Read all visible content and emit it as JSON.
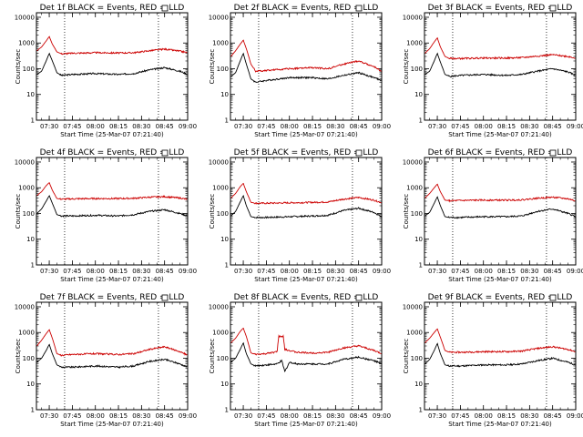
{
  "figure": {
    "ytick_labels": [
      "1",
      "10",
      "100",
      "1000",
      "10000"
    ],
    "xtick_labels": [
      "07:30",
      "07:45",
      "08:00",
      "08:15",
      "08:30",
      "08:45",
      "09:00"
    ],
    "xlabel": "Start Time (25-Mar-07 07:21:40)",
    "ylabel": "Counts/sec",
    "colors": {
      "events": "#000000",
      "lld": "#cc0000"
    }
  },
  "chart_data": [
    {
      "type": "line",
      "panel": 1,
      "title": "Det 1f BLACK = Events, RED = LLD",
      "yscale": "log",
      "ylim": [
        1,
        15000
      ],
      "xlim": [
        "07:21:40",
        "09:00"
      ],
      "xticks": [
        "07:30",
        "07:45",
        "08:00",
        "08:15",
        "08:30",
        "08:45",
        "09:00"
      ],
      "vlines": [
        "07:40",
        "08:41"
      ],
      "series": [
        {
          "name": "BLACK = Events",
          "color": "#000000",
          "x": [
            "07:22",
            "07:25",
            "07:28",
            "07:30",
            "07:32",
            "07:35",
            "07:38",
            "07:45",
            "08:00",
            "08:15",
            "08:25",
            "08:35",
            "08:45",
            "08:55",
            "09:00"
          ],
          "y": [
            60,
            80,
            200,
            400,
            200,
            70,
            55,
            60,
            65,
            60,
            65,
            90,
            110,
            80,
            60
          ]
        },
        {
          "name": "RED = LLD",
          "color": "#cc0000",
          "x": [
            "07:22",
            "07:25",
            "07:28",
            "07:30",
            "07:32",
            "07:35",
            "07:38",
            "07:45",
            "08:00",
            "08:15",
            "08:25",
            "08:35",
            "08:45",
            "08:55",
            "09:00"
          ],
          "y": [
            500,
            700,
            1200,
            1800,
            900,
            450,
            380,
            400,
            420,
            410,
            420,
            500,
            580,
            480,
            420
          ]
        }
      ]
    },
    {
      "type": "line",
      "panel": 2,
      "title": "Det 2f BLACK = Events, RED = LLD",
      "yscale": "log",
      "ylim": [
        1,
        15000
      ],
      "xlim": [
        "07:21:40",
        "09:00"
      ],
      "xticks": [
        "07:30",
        "07:45",
        "08:00",
        "08:15",
        "08:30",
        "08:45",
        "09:00"
      ],
      "vlines": [
        "07:40",
        "08:41"
      ],
      "series": [
        {
          "name": "BLACK = Events",
          "color": "#000000",
          "x": [
            "07:22",
            "07:25",
            "07:28",
            "07:30",
            "07:32",
            "07:35",
            "07:38",
            "07:45",
            "08:00",
            "08:15",
            "08:25",
            "08:35",
            "08:45",
            "08:55",
            "09:00"
          ],
          "y": [
            50,
            70,
            200,
            400,
            150,
            40,
            30,
            35,
            45,
            45,
            40,
            55,
            70,
            45,
            35
          ]
        },
        {
          "name": "RED = LLD",
          "color": "#cc0000",
          "x": [
            "07:22",
            "07:25",
            "07:28",
            "07:30",
            "07:32",
            "07:35",
            "07:38",
            "07:45",
            "08:00",
            "08:15",
            "08:25",
            "08:35",
            "08:45",
            "08:55",
            "09:00"
          ],
          "y": [
            300,
            500,
            900,
            1300,
            600,
            150,
            80,
            85,
            100,
            110,
            100,
            150,
            200,
            120,
            80
          ]
        }
      ]
    },
    {
      "type": "line",
      "panel": 3,
      "title": "Det 3f BLACK = Events, RED = LLD",
      "yscale": "log",
      "ylim": [
        1,
        15000
      ],
      "xlim": [
        "07:21:40",
        "09:00"
      ],
      "xticks": [
        "07:30",
        "07:45",
        "08:00",
        "08:15",
        "08:30",
        "08:45",
        "09:00"
      ],
      "vlines": [
        "07:40",
        "08:41"
      ],
      "series": [
        {
          "name": "BLACK = Events",
          "color": "#000000",
          "x": [
            "07:22",
            "07:25",
            "07:28",
            "07:30",
            "07:32",
            "07:35",
            "07:38",
            "07:45",
            "08:00",
            "08:15",
            "08:25",
            "08:35",
            "08:45",
            "08:55",
            "09:00"
          ],
          "y": [
            60,
            80,
            200,
            400,
            180,
            60,
            50,
            55,
            60,
            55,
            60,
            80,
            100,
            75,
            55
          ]
        },
        {
          "name": "RED = LLD",
          "color": "#cc0000",
          "x": [
            "07:22",
            "07:25",
            "07:28",
            "07:30",
            "07:32",
            "07:35",
            "07:38",
            "07:45",
            "08:00",
            "08:15",
            "08:25",
            "08:35",
            "08:45",
            "08:55",
            "09:00"
          ],
          "y": [
            400,
            600,
            1100,
            1600,
            700,
            300,
            250,
            250,
            260,
            260,
            270,
            310,
            350,
            300,
            260
          ]
        }
      ]
    },
    {
      "type": "line",
      "panel": 4,
      "title": "Det 4f BLACK = Events, RED = LLD",
      "yscale": "log",
      "ylim": [
        1,
        15000
      ],
      "xlim": [
        "07:21:40",
        "09:00"
      ],
      "xticks": [
        "07:30",
        "07:45",
        "08:00",
        "08:15",
        "08:30",
        "08:45",
        "09:00"
      ],
      "vlines": [
        "07:40",
        "08:41"
      ],
      "series": [
        {
          "name": "BLACK = Events",
          "color": "#000000",
          "x": [
            "07:22",
            "07:25",
            "07:28",
            "07:30",
            "07:32",
            "07:35",
            "07:38",
            "07:45",
            "08:00",
            "08:15",
            "08:25",
            "08:35",
            "08:45",
            "08:55",
            "09:00"
          ],
          "y": [
            100,
            150,
            300,
            500,
            250,
            90,
            80,
            80,
            85,
            80,
            90,
            120,
            140,
            100,
            80
          ]
        },
        {
          "name": "RED = LLD",
          "color": "#cc0000",
          "x": [
            "07:22",
            "07:25",
            "07:28",
            "07:30",
            "07:32",
            "07:35",
            "07:38",
            "07:45",
            "08:00",
            "08:15",
            "08:25",
            "08:35",
            "08:45",
            "08:55",
            "09:00"
          ],
          "y": [
            500,
            700,
            1200,
            1600,
            800,
            380,
            360,
            370,
            380,
            380,
            390,
            430,
            450,
            400,
            350
          ]
        }
      ]
    },
    {
      "type": "line",
      "panel": 5,
      "title": "Det 5f BLACK = Events, RED = LLD",
      "yscale": "log",
      "ylim": [
        1,
        15000
      ],
      "xlim": [
        "07:21:40",
        "09:00"
      ],
      "xticks": [
        "07:30",
        "07:45",
        "08:00",
        "08:15",
        "08:30",
        "08:45",
        "09:00"
      ],
      "vlines": [
        "07:40",
        "08:41"
      ],
      "series": [
        {
          "name": "BLACK = Events",
          "color": "#000000",
          "x": [
            "07:22",
            "07:25",
            "07:28",
            "07:30",
            "07:32",
            "07:35",
            "07:38",
            "07:45",
            "08:00",
            "08:15",
            "08:25",
            "08:35",
            "08:45",
            "08:55",
            "09:00"
          ],
          "y": [
            80,
            120,
            280,
            500,
            200,
            75,
            70,
            70,
            75,
            80,
            85,
            130,
            160,
            110,
            75
          ]
        },
        {
          "name": "RED = LLD",
          "color": "#cc0000",
          "x": [
            "07:22",
            "07:25",
            "07:28",
            "07:30",
            "07:32",
            "07:35",
            "07:38",
            "07:45",
            "08:00",
            "08:15",
            "08:25",
            "08:35",
            "08:45",
            "08:55",
            "09:00"
          ],
          "y": [
            400,
            600,
            1100,
            1500,
            700,
            270,
            250,
            250,
            260,
            270,
            280,
            360,
            420,
            330,
            260
          ]
        }
      ]
    },
    {
      "type": "line",
      "panel": 6,
      "title": "Det 6f BLACK = Events, RED = LLD",
      "yscale": "log",
      "ylim": [
        1,
        15000
      ],
      "xlim": [
        "07:21:40",
        "09:00"
      ],
      "xticks": [
        "07:30",
        "07:45",
        "08:00",
        "08:15",
        "08:30",
        "08:45",
        "09:00"
      ],
      "vlines": [
        "07:40",
        "08:41"
      ],
      "series": [
        {
          "name": "BLACK = Events",
          "color": "#000000",
          "x": [
            "07:22",
            "07:25",
            "07:28",
            "07:30",
            "07:32",
            "07:35",
            "07:38",
            "07:45",
            "08:00",
            "08:15",
            "08:25",
            "08:35",
            "08:45",
            "08:55",
            "09:00"
          ],
          "y": [
            80,
            110,
            250,
            450,
            200,
            75,
            70,
            70,
            75,
            75,
            80,
            120,
            150,
            100,
            75
          ]
        },
        {
          "name": "RED = LLD",
          "color": "#cc0000",
          "x": [
            "07:22",
            "07:25",
            "07:28",
            "07:30",
            "07:32",
            "07:35",
            "07:38",
            "07:45",
            "08:00",
            "08:15",
            "08:25",
            "08:35",
            "08:45",
            "08:55",
            "09:00"
          ],
          "y": [
            400,
            600,
            1000,
            1400,
            700,
            330,
            310,
            320,
            330,
            330,
            340,
            390,
            430,
            370,
            310
          ]
        }
      ]
    },
    {
      "type": "line",
      "panel": 7,
      "title": "Det 7f BLACK = Events, RED = LLD",
      "yscale": "log",
      "ylim": [
        1,
        15000
      ],
      "xlim": [
        "07:21:40",
        "09:00"
      ],
      "xticks": [
        "07:30",
        "07:45",
        "08:00",
        "08:15",
        "08:30",
        "08:45",
        "09:00"
      ],
      "vlines": [
        "07:40",
        "08:41"
      ],
      "series": [
        {
          "name": "BLACK = Events",
          "color": "#000000",
          "x": [
            "07:22",
            "07:25",
            "07:28",
            "07:30",
            "07:32",
            "07:35",
            "07:38",
            "07:45",
            "08:00",
            "08:15",
            "08:25",
            "08:35",
            "08:45",
            "08:55",
            "09:00"
          ],
          "y": [
            70,
            100,
            200,
            350,
            150,
            55,
            45,
            45,
            50,
            45,
            50,
            75,
            90,
            60,
            45
          ]
        },
        {
          "name": "RED = LLD",
          "color": "#cc0000",
          "x": [
            "07:22",
            "07:25",
            "07:28",
            "07:30",
            "07:32",
            "07:35",
            "07:38",
            "07:45",
            "08:00",
            "08:15",
            "08:25",
            "08:35",
            "08:45",
            "08:55",
            "09:00"
          ],
          "y": [
            300,
            500,
            900,
            1300,
            600,
            150,
            130,
            140,
            150,
            140,
            150,
            220,
            280,
            180,
            130
          ]
        }
      ]
    },
    {
      "type": "line",
      "panel": 8,
      "title": "Det 8f BLACK = Events, RED = LLD",
      "yscale": "log",
      "ylim": [
        1,
        15000
      ],
      "xlim": [
        "07:21:40",
        "09:00"
      ],
      "xticks": [
        "07:30",
        "07:45",
        "08:00",
        "08:15",
        "08:30",
        "08:45",
        "09:00"
      ],
      "vlines": [
        "07:40",
        "08:41"
      ],
      "series": [
        {
          "name": "BLACK = Events",
          "color": "#000000",
          "x": [
            "07:22",
            "07:25",
            "07:28",
            "07:30",
            "07:32",
            "07:35",
            "07:38",
            "07:45",
            "07:52",
            "07:55",
            "07:57",
            "08:00",
            "08:05",
            "08:15",
            "08:25",
            "08:35",
            "08:45",
            "08:55",
            "09:00"
          ],
          "y": [
            70,
            100,
            220,
            400,
            150,
            60,
            50,
            55,
            60,
            80,
            30,
            70,
            60,
            60,
            60,
            90,
            110,
            80,
            60
          ]
        },
        {
          "name": "RED = LLD",
          "color": "#cc0000",
          "x": [
            "07:22",
            "07:25",
            "07:28",
            "07:30",
            "07:32",
            "07:35",
            "07:38",
            "07:45",
            "07:52",
            "07:53",
            "07:56",
            "07:57",
            "08:05",
            "08:15",
            "08:25",
            "08:35",
            "08:45",
            "08:55",
            "09:00"
          ],
          "y": [
            400,
            600,
            1100,
            1500,
            700,
            160,
            140,
            150,
            180,
            700,
            700,
            220,
            170,
            160,
            170,
            250,
            300,
            200,
            150
          ]
        }
      ]
    },
    {
      "type": "line",
      "panel": 9,
      "title": "Det 9f BLACK = Events, RED = LLD",
      "yscale": "log",
      "ylim": [
        1,
        15000
      ],
      "xlim": [
        "07:21:40",
        "09:00"
      ],
      "xticks": [
        "07:30",
        "07:45",
        "08:00",
        "08:15",
        "08:30",
        "08:45",
        "09:00"
      ],
      "vlines": [
        "07:40",
        "08:41"
      ],
      "series": [
        {
          "name": "BLACK = Events",
          "color": "#000000",
          "x": [
            "07:22",
            "07:25",
            "07:28",
            "07:30",
            "07:32",
            "07:35",
            "07:38",
            "07:45",
            "08:00",
            "08:15",
            "08:25",
            "08:35",
            "08:45",
            "08:55",
            "09:00"
          ],
          "y": [
            60,
            90,
            200,
            380,
            150,
            55,
            50,
            50,
            55,
            55,
            60,
            80,
            100,
            70,
            55
          ]
        },
        {
          "name": "RED = LLD",
          "color": "#cc0000",
          "x": [
            "07:22",
            "07:25",
            "07:28",
            "07:30",
            "07:32",
            "07:35",
            "07:38",
            "07:45",
            "08:00",
            "08:15",
            "08:25",
            "08:35",
            "08:45",
            "08:55",
            "09:00"
          ],
          "y": [
            400,
            600,
            1000,
            1400,
            650,
            200,
            170,
            170,
            180,
            180,
            190,
            240,
            280,
            220,
            180
          ]
        }
      ]
    }
  ]
}
